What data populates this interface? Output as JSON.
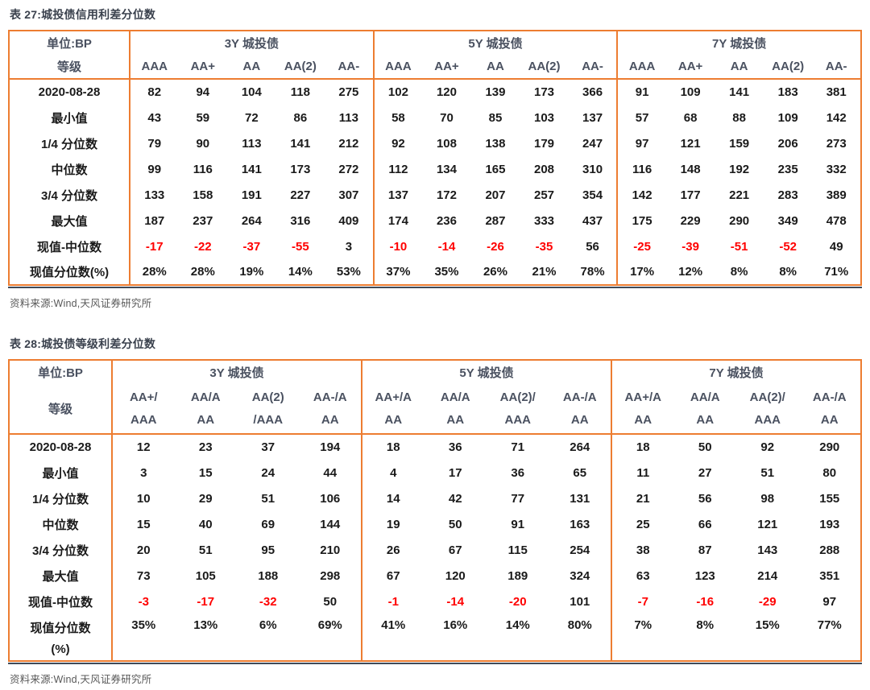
{
  "colors": {
    "border_orange": "#ED7D31",
    "bottom_rule": "#3F4A59",
    "header_text": "#4A5160",
    "negative_red": "#FF0000",
    "source_gray": "#595959"
  },
  "tables": [
    {
      "title": "表 27:城投债信用利差分位数",
      "corner": {
        "line1": "单位:BP",
        "line2": "等级"
      },
      "groups": [
        {
          "title": "3Y 城投债",
          "columns": [
            [
              "AAA"
            ],
            [
              "AA+"
            ],
            [
              "AA"
            ],
            [
              "AA(2)"
            ],
            [
              "AA-"
            ]
          ]
        },
        {
          "title": "5Y 城投债",
          "columns": [
            [
              "AAA"
            ],
            [
              "AA+"
            ],
            [
              "AA"
            ],
            [
              "AA(2)"
            ],
            [
              "AA-"
            ]
          ]
        },
        {
          "title": "7Y 城投债",
          "columns": [
            [
              "AAA"
            ],
            [
              "AA+"
            ],
            [
              "AA"
            ],
            [
              "AA(2)"
            ],
            [
              "AA-"
            ]
          ]
        }
      ],
      "rows": [
        {
          "label": [
            "2020-08-28"
          ],
          "values": [
            "82",
            "94",
            "104",
            "118",
            "275",
            "102",
            "120",
            "139",
            "173",
            "366",
            "91",
            "109",
            "141",
            "183",
            "381"
          ]
        },
        {
          "label": [
            "最小值"
          ],
          "values": [
            "43",
            "59",
            "72",
            "86",
            "113",
            "58",
            "70",
            "85",
            "103",
            "137",
            "57",
            "68",
            "88",
            "109",
            "142"
          ]
        },
        {
          "label": [
            "1/4 分位数"
          ],
          "values": [
            "79",
            "90",
            "113",
            "141",
            "212",
            "92",
            "108",
            "138",
            "179",
            "247",
            "97",
            "121",
            "159",
            "206",
            "273"
          ]
        },
        {
          "label": [
            "中位数"
          ],
          "values": [
            "99",
            "116",
            "141",
            "173",
            "272",
            "112",
            "134",
            "165",
            "208",
            "310",
            "116",
            "148",
            "192",
            "235",
            "332"
          ]
        },
        {
          "label": [
            "3/4 分位数"
          ],
          "values": [
            "133",
            "158",
            "191",
            "227",
            "307",
            "137",
            "172",
            "207",
            "257",
            "354",
            "142",
            "177",
            "221",
            "283",
            "389"
          ]
        },
        {
          "label": [
            "最大值"
          ],
          "values": [
            "187",
            "237",
            "264",
            "316",
            "409",
            "174",
            "236",
            "287",
            "333",
            "437",
            "175",
            "229",
            "290",
            "349",
            "478"
          ]
        },
        {
          "label": [
            "现值-中位数"
          ],
          "values": [
            "-17",
            "-22",
            "-37",
            "-55",
            "3",
            "-10",
            "-14",
            "-26",
            "-35",
            "56",
            "-25",
            "-39",
            "-51",
            "-52",
            "49"
          ]
        },
        {
          "label": [
            "现值分位数(%)"
          ],
          "values": [
            "28%",
            "28%",
            "19%",
            "14%",
            "53%",
            "37%",
            "35%",
            "26%",
            "21%",
            "78%",
            "17%",
            "12%",
            "8%",
            "8%",
            "71%"
          ]
        }
      ],
      "source": "资料来源:Wind,天风证券研究所"
    },
    {
      "title": "表 28:城投债等级利差分位数",
      "corner": {
        "line1": "单位:BP",
        "line2": "等级"
      },
      "groups": [
        {
          "title": "3Y 城投债",
          "columns": [
            [
              "AA+/",
              "AAA"
            ],
            [
              "AA/A",
              "AA"
            ],
            [
              "AA(2)",
              "/AAA"
            ],
            [
              "AA-/A",
              "AA"
            ]
          ]
        },
        {
          "title": "5Y 城投债",
          "columns": [
            [
              "AA+/A",
              "AA"
            ],
            [
              "AA/A",
              "AA"
            ],
            [
              "AA(2)/",
              "AAA"
            ],
            [
              "AA-/A",
              "AA"
            ]
          ]
        },
        {
          "title": "7Y 城投债",
          "columns": [
            [
              "AA+/A",
              "AA"
            ],
            [
              "AA/A",
              "AA"
            ],
            [
              "AA(2)/",
              "AAA"
            ],
            [
              "AA-/A",
              "AA"
            ]
          ]
        }
      ],
      "rows": [
        {
          "label": [
            "2020-08-28"
          ],
          "values": [
            "12",
            "23",
            "37",
            "194",
            "18",
            "36",
            "71",
            "264",
            "18",
            "50",
            "92",
            "290"
          ]
        },
        {
          "label": [
            "最小值"
          ],
          "values": [
            "3",
            "15",
            "24",
            "44",
            "4",
            "17",
            "36",
            "65",
            "11",
            "27",
            "51",
            "80"
          ]
        },
        {
          "label": [
            "1/4 分位数"
          ],
          "values": [
            "10",
            "29",
            "51",
            "106",
            "14",
            "42",
            "77",
            "131",
            "21",
            "56",
            "98",
            "155"
          ]
        },
        {
          "label": [
            "中位数"
          ],
          "values": [
            "15",
            "40",
            "69",
            "144",
            "19",
            "50",
            "91",
            "163",
            "25",
            "66",
            "121",
            "193"
          ]
        },
        {
          "label": [
            "3/4 分位数"
          ],
          "values": [
            "20",
            "51",
            "95",
            "210",
            "26",
            "67",
            "115",
            "254",
            "38",
            "87",
            "143",
            "288"
          ]
        },
        {
          "label": [
            "最大值"
          ],
          "values": [
            "73",
            "105",
            "188",
            "298",
            "67",
            "120",
            "189",
            "324",
            "63",
            "123",
            "214",
            "351"
          ]
        },
        {
          "label": [
            "现值-中位数"
          ],
          "values": [
            "-3",
            "-17",
            "-32",
            "50",
            "-1",
            "-14",
            "-20",
            "101",
            "-7",
            "-16",
            "-29",
            "97"
          ]
        },
        {
          "label": [
            "现值分位数",
            "(%)"
          ],
          "values": [
            "35%",
            "13%",
            "6%",
            "69%",
            "41%",
            "16%",
            "14%",
            "80%",
            "7%",
            "8%",
            "15%",
            "77%"
          ]
        }
      ],
      "source": "资料来源:Wind,天风证券研究所"
    }
  ]
}
